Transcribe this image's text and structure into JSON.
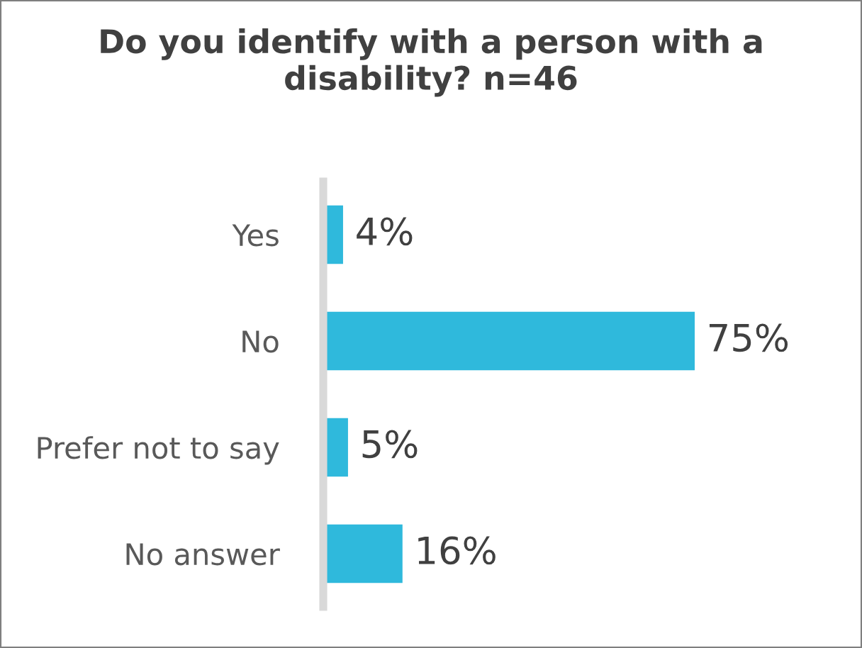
{
  "chart_data": {
    "type": "bar",
    "orientation": "horizontal",
    "title": "Do you identify with a person with a disability? n=46",
    "categories": [
      "Yes",
      "No",
      "Prefer not to say",
      "No answer"
    ],
    "values": [
      4,
      75,
      5,
      16
    ],
    "value_labels": [
      "4%",
      "75%",
      "5%",
      "16%"
    ],
    "color": "#2fb9dc",
    "grid": false,
    "legend": false
  }
}
